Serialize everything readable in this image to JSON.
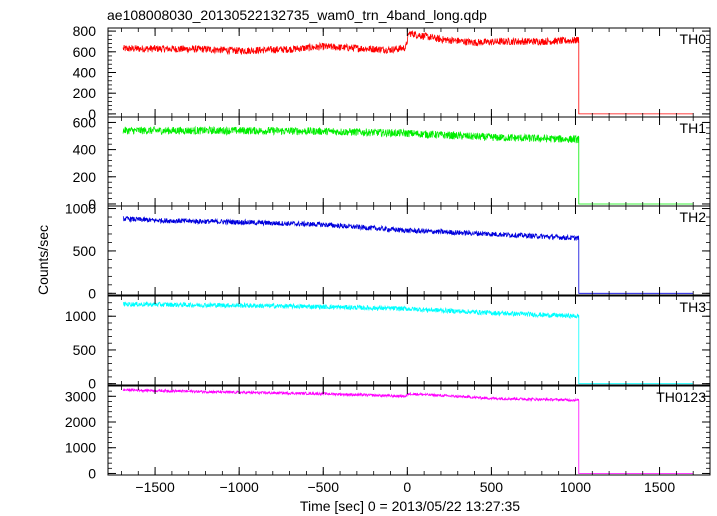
{
  "chart_data": {
    "type": "line",
    "title": "ae108008030_20130522132735_wam0_trn_4band_long.qdp",
    "xlabel": "Time [sec] 0 = 2013/05/22 13:27:35",
    "ylabel": "Counts/sec",
    "xlim": [
      -1780,
      1800
    ],
    "x_ticks": [
      -1500,
      -1000,
      -500,
      0,
      500,
      1000,
      1500
    ],
    "x_tick_labels": [
      "−1500",
      "−1000",
      "−500",
      "0",
      "500",
      "1000",
      "1500"
    ],
    "grid": false,
    "series": [
      {
        "name": "TH0",
        "color": "#ff0000",
        "ylim": [
          -30,
          830
        ],
        "y_ticks": [
          0,
          200,
          400,
          600,
          800
        ],
        "x": [
          -1690,
          -1500,
          -1200,
          -1000,
          -700,
          -500,
          -100,
          -10,
          10,
          200,
          400,
          600,
          800,
          1000,
          1020,
          1040,
          1700
        ],
        "values": [
          630,
          630,
          625,
          610,
          625,
          650,
          620,
          640,
          780,
          720,
          690,
          700,
          700,
          710,
          720,
          0,
          0
        ],
        "noise": 35
      },
      {
        "name": "TH1",
        "color": "#00ee00",
        "ylim": [
          -15,
          640
        ],
        "y_ticks": [
          0,
          200,
          400,
          600
        ],
        "x": [
          -1690,
          -1000,
          -500,
          0,
          500,
          1020,
          1040,
          1700
        ],
        "values": [
          540,
          540,
          535,
          520,
          490,
          475,
          0,
          0
        ],
        "noise": 28
      },
      {
        "name": "TH2",
        "color": "#0000dd",
        "ylim": [
          -20,
          1030
        ],
        "y_ticks": [
          0,
          500,
          1000
        ],
        "x": [
          -1690,
          -1500,
          -1000,
          -500,
          0,
          500,
          1020,
          1040,
          1700
        ],
        "values": [
          880,
          860,
          840,
          810,
          740,
          700,
          650,
          0,
          0
        ],
        "noise": 30
      },
      {
        "name": "TH3",
        "color": "#00ffff",
        "ylim": [
          -20,
          1300
        ],
        "y_ticks": [
          0,
          500,
          1000
        ],
        "x": [
          -1690,
          -1000,
          -500,
          0,
          500,
          1020,
          1040,
          1700
        ],
        "values": [
          1180,
          1160,
          1140,
          1110,
          1050,
          1000,
          0,
          0
        ],
        "noise": 35
      },
      {
        "name": "TH0123",
        "color": "#ff00ff",
        "ylim": [
          -60,
          3400
        ],
        "y_ticks": [
          0,
          1000,
          2000,
          3000
        ],
        "x": [
          -1690,
          -1000,
          -500,
          -10,
          10,
          500,
          1020,
          1040,
          1700
        ],
        "values": [
          3250,
          3150,
          3100,
          3000,
          3100,
          2920,
          2850,
          0,
          0
        ],
        "noise": 50
      }
    ]
  }
}
